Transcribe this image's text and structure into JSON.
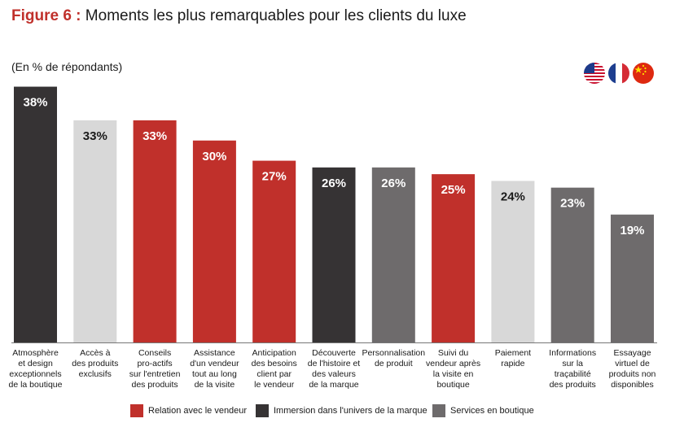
{
  "header": {
    "figure_label": "Figure 6 :",
    "title_text": "Moments les plus remarquables pour les clients du luxe",
    "subtitle": "(En % de répondants)"
  },
  "flags": {
    "items": [
      {
        "name": "usa-flag-icon"
      },
      {
        "name": "france-flag-icon"
      },
      {
        "name": "china-flag-icon"
      }
    ]
  },
  "colors": {
    "red": "#c0302b",
    "dark": "#363334",
    "gray": "#6e6b6c",
    "light": "#d8d8d8"
  },
  "legend": [
    {
      "label": "Relation avec le vendeur",
      "color": "red"
    },
    {
      "label": "Immersion dans l'univers de la marque",
      "color": "dark"
    },
    {
      "label": "Services en boutique",
      "color": "gray"
    }
  ],
  "chart_data": {
    "type": "bar",
    "title": "Moments les plus remarquables pour les clients du luxe",
    "ylabel": "(En % de répondants)",
    "ylim": [
      0,
      40
    ],
    "grid": false,
    "categories": [
      [
        "Atmosphère",
        "et design",
        "exceptionnels",
        "de la boutique"
      ],
      [
        "Accès à",
        "des produits",
        "exclusifs"
      ],
      [
        "Conseils",
        "pro-actifs",
        "sur l'entretien",
        "des produits"
      ],
      [
        "Assistance",
        "d'un vendeur",
        "tout au long",
        "de la visite"
      ],
      [
        "Anticipation",
        "des besoins",
        "client par",
        "le vendeur"
      ],
      [
        "Découverte",
        "de l'histoire et",
        "des valeurs",
        "de la marque"
      ],
      [
        "Personnalisation",
        "de produit"
      ],
      [
        "Suivi du",
        "vendeur après",
        "la visite en",
        "boutique"
      ],
      [
        "Paiement",
        "rapide"
      ],
      [
        "Informations",
        "sur la",
        "traçabilité",
        "des produits"
      ],
      [
        "Essayage",
        "virtuel de",
        "produits non",
        "disponibles"
      ]
    ],
    "values": [
      38,
      33,
      33,
      30,
      27,
      26,
      26,
      25,
      24,
      23,
      19
    ],
    "value_labels": [
      "38%",
      "33%",
      "33%",
      "30%",
      "27%",
      "26%",
      "26%",
      "25%",
      "24%",
      "23%",
      "19%"
    ],
    "bar_colors": [
      "dark",
      "light",
      "red",
      "red",
      "red",
      "dark",
      "gray",
      "red",
      "light",
      "gray",
      "gray"
    ]
  }
}
